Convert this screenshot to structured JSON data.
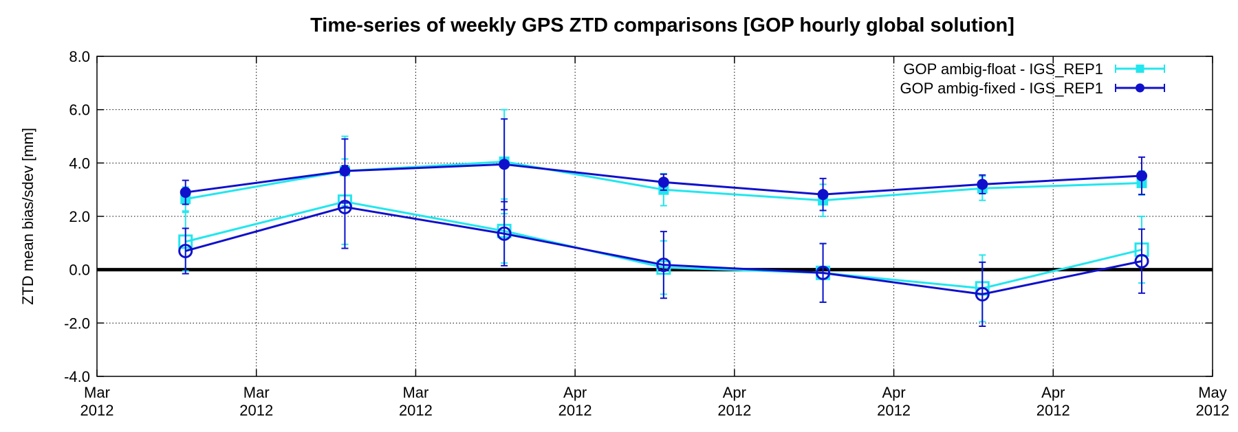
{
  "chart_data": {
    "type": "line",
    "title": "Time-series of weekly GPS ZTD comparisons [GOP hourly global solution]",
    "ylabel": "ZTD mean bias/sdev [mm]",
    "xlabel": "",
    "ylim": [
      -4.0,
      8.0
    ],
    "yticks": [
      -4.0,
      -2.0,
      0.0,
      2.0,
      4.0,
      6.0,
      8.0
    ],
    "ytick_labels": [
      "-4.0",
      "-2.0",
      "0.0",
      "2.0",
      "4.0",
      "6.0",
      "8.0"
    ],
    "xlim": [
      "2012-03-04",
      "2012-05-06"
    ],
    "xticks": [
      "2012-03-04",
      "2012-03-13",
      "2012-03-22",
      "2012-03-31",
      "2012-04-09",
      "2012-04-18",
      "2012-04-27",
      "2012-05-06"
    ],
    "xtick_labels": [
      [
        "Mar",
        "2012"
      ],
      [
        "Mar",
        "2012"
      ],
      [
        "Mar",
        "2012"
      ],
      [
        "Apr",
        "2012"
      ],
      [
        "Apr",
        "2012"
      ],
      [
        "Apr",
        "2012"
      ],
      [
        "Apr",
        "2012"
      ],
      [
        "May",
        "2012"
      ]
    ],
    "x": [
      "2012-03-09",
      "2012-03-18",
      "2012-03-27",
      "2012-04-05",
      "2012-04-14",
      "2012-04-23",
      "2012-05-02"
    ],
    "grid": true,
    "zero_line": true,
    "legend_position": "top-right",
    "series": [
      {
        "name": "GOP ambig-float - IGS_REP1",
        "color": "#22e6ee",
        "marker": "square",
        "sdev": [
          2.65,
          3.7,
          4.05,
          3.0,
          2.6,
          3.05,
          3.25
        ],
        "sdev_err": [
          0.45,
          1.3,
          1.95,
          0.6,
          0.6,
          0.45,
          0.45
        ],
        "bias": [
          1.05,
          2.55,
          1.45,
          0.08,
          -0.12,
          -0.7,
          0.75
        ],
        "bias_err": [
          1.1,
          1.6,
          1.2,
          1.0,
          1.1,
          1.25,
          1.25
        ]
      },
      {
        "name": "GOP ambig-fixed - IGS_REP1",
        "color": "#1010cc",
        "marker": "circle",
        "sdev": [
          2.9,
          3.7,
          3.95,
          3.28,
          2.82,
          3.2,
          3.52
        ],
        "sdev_err": [
          0.45,
          1.2,
          1.7,
          0.3,
          0.6,
          0.35,
          0.7
        ],
        "bias": [
          0.7,
          2.35,
          1.35,
          0.18,
          -0.12,
          -0.92,
          0.32
        ],
        "bias_err": [
          0.85,
          1.55,
          1.2,
          1.25,
          1.1,
          1.2,
          1.2
        ]
      }
    ]
  }
}
